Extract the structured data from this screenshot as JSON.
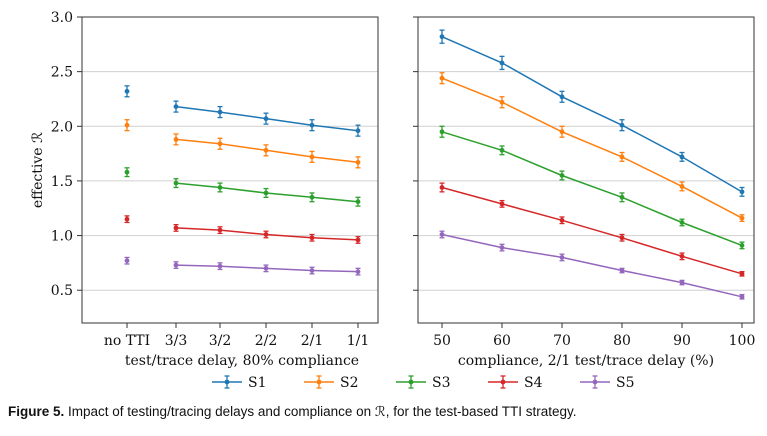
{
  "chart_data": [
    {
      "type": "scatter",
      "panel": "left",
      "xlabel": "test/trace delay, 80% compliance",
      "ylabel": "effective ℛ",
      "ylim": [
        0.2,
        3.0
      ],
      "yticks": [
        "0.5",
        "1.0",
        "1.5",
        "2.0",
        "2.5",
        "3.0"
      ],
      "categories": [
        "no TTI",
        "3/3",
        "3/2",
        "2/2",
        "2/1",
        "1/1"
      ],
      "grid": true,
      "series": [
        {
          "name": "S1",
          "values": [
            2.32,
            2.18,
            2.13,
            2.07,
            2.01,
            1.96
          ],
          "errors": [
            0.05,
            0.05,
            0.05,
            0.05,
            0.05,
            0.05
          ]
        },
        {
          "name": "S2",
          "values": [
            2.01,
            1.88,
            1.84,
            1.78,
            1.72,
            1.67
          ],
          "errors": [
            0.05,
            0.05,
            0.05,
            0.05,
            0.05,
            0.05
          ]
        },
        {
          "name": "S3",
          "values": [
            1.58,
            1.48,
            1.44,
            1.39,
            1.35,
            1.31
          ],
          "errors": [
            0.04,
            0.04,
            0.04,
            0.04,
            0.04,
            0.04
          ]
        },
        {
          "name": "S4",
          "values": [
            1.15,
            1.07,
            1.05,
            1.01,
            0.98,
            0.96
          ],
          "errors": [
            0.03,
            0.03,
            0.03,
            0.03,
            0.03,
            0.03
          ]
        },
        {
          "name": "S5",
          "values": [
            0.77,
            0.73,
            0.72,
            0.7,
            0.68,
            0.67
          ],
          "errors": [
            0.03,
            0.03,
            0.03,
            0.03,
            0.03,
            0.03
          ]
        }
      ]
    },
    {
      "type": "line",
      "panel": "right",
      "xlabel": "compliance, 2/1 test/trace delay (%)",
      "x": [
        50,
        60,
        70,
        80,
        90,
        100
      ],
      "xticks": [
        "50",
        "60",
        "70",
        "80",
        "90",
        "100"
      ],
      "xlim": [
        46,
        102
      ],
      "ylim": [
        0.2,
        3.0
      ],
      "grid": true,
      "series": [
        {
          "name": "S1",
          "values": [
            2.82,
            2.58,
            2.27,
            2.01,
            1.72,
            1.4
          ],
          "errors": [
            0.06,
            0.06,
            0.05,
            0.05,
            0.04,
            0.04
          ]
        },
        {
          "name": "S2",
          "values": [
            2.44,
            2.22,
            1.95,
            1.72,
            1.45,
            1.16
          ],
          "errors": [
            0.05,
            0.05,
            0.05,
            0.04,
            0.04,
            0.03
          ]
        },
        {
          "name": "S3",
          "values": [
            1.95,
            1.78,
            1.55,
            1.35,
            1.12,
            0.91
          ],
          "errors": [
            0.05,
            0.04,
            0.04,
            0.04,
            0.03,
            0.03
          ]
        },
        {
          "name": "S4",
          "values": [
            1.44,
            1.29,
            1.14,
            0.98,
            0.81,
            0.65
          ],
          "errors": [
            0.04,
            0.03,
            0.03,
            0.03,
            0.03,
            0.02
          ]
        },
        {
          "name": "S5",
          "values": [
            1.01,
            0.89,
            0.8,
            0.68,
            0.57,
            0.44
          ],
          "errors": [
            0.03,
            0.03,
            0.03,
            0.02,
            0.02,
            0.02
          ]
        }
      ]
    }
  ],
  "legend": {
    "placement": "bottom",
    "entries": [
      "S1",
      "S2",
      "S3",
      "S4",
      "S5"
    ]
  },
  "colors": {
    "S1": "#1f77b4",
    "S2": "#ff7f0e",
    "S3": "#2ca02c",
    "S4": "#d62728",
    "S5": "#9467bd",
    "grid": "#d0d0d0",
    "axis": "#333333"
  },
  "caption": {
    "lead": "Figure 5.",
    "text": " Impact of testing/tracing delays and compliance on ℛ, for the test-based TTI strategy."
  }
}
